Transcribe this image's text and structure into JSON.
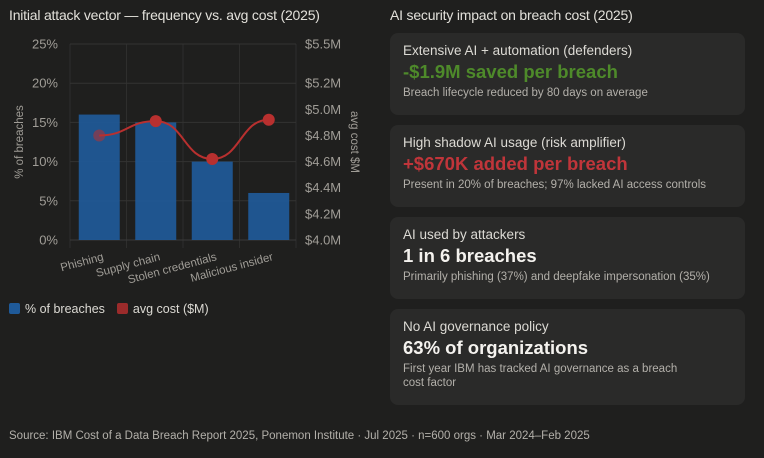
{
  "left_title": "Initial attack vector — frequency vs. avg cost (2025)",
  "right_title": "AI security impact on breach cost (2025)",
  "chart_data": {
    "type": "bar+line",
    "categories": [
      "Phishing",
      "Supply chain",
      "Stolen credentials",
      "Malicious insider"
    ],
    "series": [
      {
        "name": "% of breaches",
        "type": "bar",
        "axis": "left",
        "values": [
          16,
          15,
          10,
          6
        ],
        "color": "#1f5a99"
      },
      {
        "name": "avg cost ($M)",
        "type": "line",
        "axis": "right",
        "values": [
          4.8,
          4.91,
          4.62,
          4.92
        ],
        "color": "#b8302f"
      }
    ],
    "ylabel": "% of breaches",
    "ylabel_right": "avg cost $M",
    "ylim": [
      0,
      25
    ],
    "ylim_right": [
      4.0,
      5.5
    ],
    "yticks": [
      "0%",
      "5%",
      "10%",
      "15%",
      "20%",
      "25%"
    ],
    "yticks_right": [
      "$4.0M",
      "$4.2M",
      "$4.4M",
      "$4.6M",
      "$4.8M",
      "$5.0M",
      "$5.2M",
      "$5.5M"
    ],
    "yticks_right_values": [
      4.0,
      4.2,
      4.4,
      4.6,
      4.8,
      5.0,
      5.2,
      5.5
    ],
    "grid": true,
    "legend": "bottom-left"
  },
  "cards": [
    {
      "label": "Extensive AI + automation (defenders)",
      "value": "-$1.9M saved per breach",
      "note": "Breach lifecycle reduced by 80 days on average",
      "color": "#4e8a2a"
    },
    {
      "label": "High shadow AI usage (risk amplifier)",
      "value": "+$670K added per breach",
      "note": "Present in 20% of breaches; 97% lacked AI access controls",
      "color": "#c0353a"
    },
    {
      "label": "AI used by attackers",
      "value": "1 in 6 breaches",
      "note": "Primarily phishing (37%) and deepfake impersonation (35%)",
      "color": "#f4f2ee"
    },
    {
      "label": "No AI governance policy",
      "value": "63% of organizations",
      "note": "First year IBM has tracked AI governance as a breach cost factor",
      "color": "#f4f2ee"
    }
  ],
  "source": "Source: IBM Cost of a Data Breach Report 2025, Ponemon Institute · Jul 2025 · n=600 orgs · Mar 2024–Feb 2025"
}
